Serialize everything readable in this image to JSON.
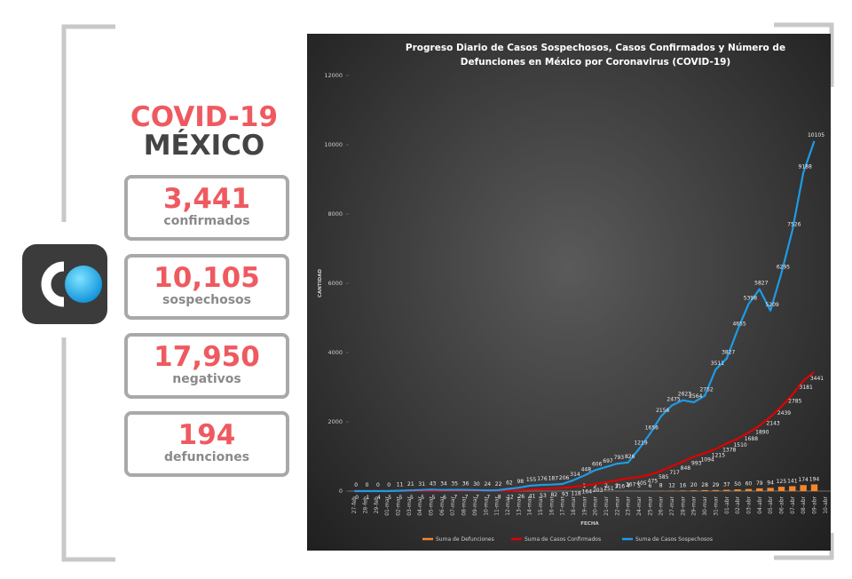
{
  "header": {
    "title": "COVID-19",
    "subtitle": "MÉXICO"
  },
  "stats": [
    {
      "value": "3,441",
      "label": "confirmados"
    },
    {
      "value": "10,105",
      "label": "sospechosos"
    },
    {
      "value": "17,950",
      "label": "negativos"
    },
    {
      "value": "194",
      "label": "defunciones"
    }
  ],
  "chart_data": {
    "type": "line",
    "title": "Progreso Diario de Casos Sospechosos, Casos Confirmados y Número de Defunciones en México por Coronavirus (COVID-19)",
    "x_label": "FECHA",
    "y_label": "CANTIDAD",
    "categories": [
      "27-feb",
      "28-feb",
      "29-feb",
      "01-mar",
      "02-mar",
      "03-mar",
      "04-mar",
      "05-mar",
      "06-mar",
      "07-mar",
      "08-mar",
      "09-mar",
      "10-mar",
      "11-mar",
      "12-mar",
      "13-mar",
      "14-mar",
      "15-mar",
      "16-mar",
      "17-mar",
      "18-mar",
      "19-mar",
      "20-mar",
      "21-mar",
      "22-mar",
      "23-mar",
      "24-mar",
      "25-mar",
      "26-mar",
      "27-mar",
      "28-mar",
      "29-mar",
      "30-mar",
      "31-mar",
      "01-abr",
      "02-abr",
      "03-abr",
      "04-abr",
      "05-abr",
      "06-abr",
      "07-abr",
      "08-abr",
      "09-abr",
      "10-abr"
    ],
    "series": [
      {
        "name": "Suma de Defunciones",
        "type": "bar",
        "color": "#f4862a",
        "values": [
          0,
          0,
          0,
          0,
          0,
          0,
          0,
          0,
          0,
          0,
          0,
          0,
          0,
          0,
          0,
          0,
          0,
          0,
          0,
          0,
          0,
          1,
          2,
          2,
          2,
          4,
          5,
          6,
          8,
          12,
          16,
          20,
          28,
          29,
          37,
          50,
          60,
          79,
          94,
          125,
          141,
          174,
          194,
          null
        ]
      },
      {
        "name": "Suma de Casos Confirmados",
        "type": "line",
        "color": "#e00000",
        "values": [
          0,
          1,
          4,
          5,
          5,
          5,
          5,
          5,
          6,
          7,
          7,
          7,
          7,
          8,
          12,
          26,
          41,
          53,
          82,
          93,
          118,
          164,
          203,
          251,
          316,
          367,
          405,
          475,
          585,
          717,
          848,
          993,
          1094,
          1215,
          1378,
          1510,
          1688,
          1890,
          2143,
          2439,
          2785,
          3181,
          3441,
          null
        ]
      },
      {
        "name": "Suma de Casos Sospechosos",
        "type": "line",
        "color": "#1e9be8",
        "values": [
          0,
          0,
          0,
          0,
          11,
          21,
          31,
          43,
          34,
          35,
          36,
          30,
          24,
          22,
          62,
          98,
          155,
          176,
          187,
          206,
          314,
          448,
          606,
          697,
          793,
          826,
          1219,
          1656,
          2156,
          2475,
          2623,
          2564,
          2752,
          3511,
          3827,
          4655,
          5398,
          5827,
          5209,
          6295,
          7526,
          9188,
          10105,
          null
        ]
      }
    ],
    "ylim": [
      0,
      12000
    ],
    "yticks": [
      0,
      2000,
      4000,
      6000,
      8000,
      10000,
      12000
    ],
    "grid": false
  }
}
